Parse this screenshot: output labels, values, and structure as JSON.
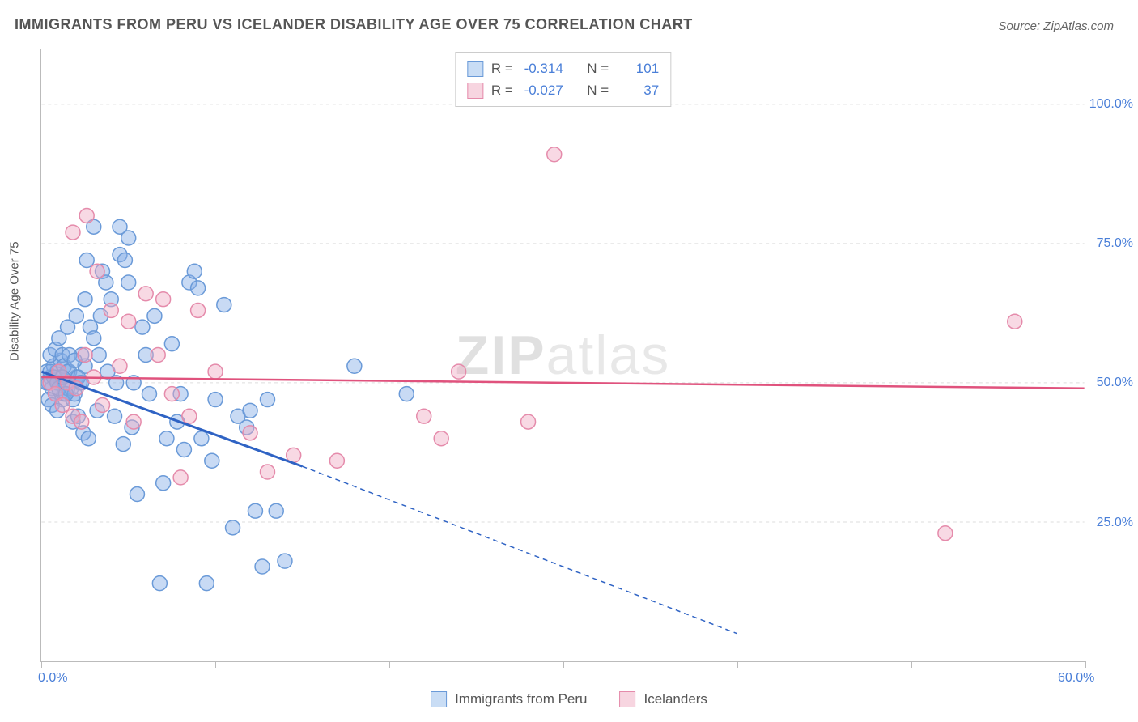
{
  "title": "IMMIGRANTS FROM PERU VS ICELANDER DISABILITY AGE OVER 75 CORRELATION CHART",
  "source": "Source: ZipAtlas.com",
  "watermark_bold": "ZIP",
  "watermark_thin": "atlas",
  "chart": {
    "type": "scatter",
    "ylabel": "Disability Age Over 75",
    "xlim": [
      0,
      60
    ],
    "ylim": [
      0,
      110
    ],
    "y_ticks": [
      25,
      50,
      75,
      100
    ],
    "y_tick_labels": [
      "25.0%",
      "50.0%",
      "75.0%",
      "100.0%"
    ],
    "x_ticks": [
      0,
      10,
      20,
      30,
      40,
      50,
      60
    ],
    "x_tick_labels_shown": {
      "0": "0.0%",
      "60": "60.0%"
    },
    "background_color": "#ffffff",
    "grid_color": "#dddddd",
    "axis_color": "#bbbbbb",
    "marker_radius": 9,
    "marker_stroke_width": 1.5,
    "series": [
      {
        "name": "Immigrants from Peru",
        "color_fill": "rgba(132,172,231,0.45)",
        "color_stroke": "#6a9ad8",
        "swatch_fill": "#c9ddf5",
        "swatch_stroke": "#6a9ad8",
        "R": "-0.314",
        "N": "101",
        "trend": {
          "x1": 0,
          "y1": 52,
          "x2_solid": 15,
          "y2_solid": 35,
          "x2_dash": 40,
          "y2_dash": 5,
          "stroke": "#2f63c4",
          "width": 3
        },
        "points": [
          [
            0.3,
            52
          ],
          [
            0.4,
            50
          ],
          [
            0.5,
            51
          ],
          [
            0.6,
            49
          ],
          [
            0.7,
            53
          ],
          [
            0.8,
            48
          ],
          [
            0.9,
            52
          ],
          [
            1.0,
            50
          ],
          [
            1.1,
            54
          ],
          [
            1.2,
            47
          ],
          [
            0.5,
            55
          ],
          [
            0.8,
            56
          ],
          [
            1.0,
            58
          ],
          [
            1.2,
            55
          ],
          [
            1.3,
            48
          ],
          [
            1.4,
            50
          ],
          [
            1.5,
            49
          ],
          [
            1.6,
            52
          ],
          [
            1.8,
            47
          ],
          [
            2.0,
            51
          ],
          [
            2.2,
            50
          ],
          [
            2.3,
            55
          ],
          [
            2.5,
            53
          ],
          [
            2.6,
            72
          ],
          [
            2.8,
            60
          ],
          [
            3.0,
            58
          ],
          [
            3.2,
            45
          ],
          [
            3.4,
            62
          ],
          [
            3.5,
            70
          ],
          [
            3.7,
            68
          ],
          [
            4.0,
            65
          ],
          [
            4.2,
            44
          ],
          [
            4.5,
            73
          ],
          [
            4.8,
            72
          ],
          [
            5.0,
            68
          ],
          [
            5.2,
            42
          ],
          [
            5.5,
            30
          ],
          [
            5.8,
            60
          ],
          [
            6.0,
            55
          ],
          [
            6.2,
            48
          ],
          [
            6.5,
            62
          ],
          [
            6.8,
            14
          ],
          [
            7.0,
            32
          ],
          [
            7.2,
            40
          ],
          [
            7.5,
            57
          ],
          [
            7.8,
            43
          ],
          [
            8.0,
            48
          ],
          [
            8.2,
            38
          ],
          [
            8.5,
            68
          ],
          [
            8.8,
            70
          ],
          [
            9.0,
            67
          ],
          [
            9.2,
            40
          ],
          [
            9.5,
            14
          ],
          [
            9.8,
            36
          ],
          [
            10.0,
            47
          ],
          [
            10.5,
            64
          ],
          [
            11.0,
            24
          ],
          [
            11.3,
            44
          ],
          [
            11.8,
            42
          ],
          [
            12.0,
            45
          ],
          [
            12.3,
            27
          ],
          [
            12.7,
            17
          ],
          [
            13.0,
            47
          ],
          [
            13.5,
            27
          ],
          [
            14.0,
            18
          ],
          [
            3.0,
            78
          ],
          [
            4.5,
            78
          ],
          [
            5.0,
            76
          ],
          [
            1.5,
            60
          ],
          [
            2.0,
            62
          ],
          [
            2.5,
            65
          ],
          [
            3.3,
            55
          ],
          [
            3.8,
            52
          ],
          [
            4.3,
            50
          ],
          [
            4.7,
            39
          ],
          [
            5.3,
            50
          ],
          [
            1.8,
            43
          ],
          [
            2.1,
            44
          ],
          [
            2.4,
            41
          ],
          [
            2.7,
            40
          ],
          [
            0.4,
            47
          ],
          [
            0.6,
            46
          ],
          [
            0.9,
            45
          ],
          [
            1.1,
            51
          ],
          [
            1.3,
            53
          ],
          [
            1.5,
            52
          ],
          [
            1.7,
            49
          ],
          [
            1.9,
            48
          ],
          [
            2.1,
            51
          ],
          [
            2.3,
            50
          ],
          [
            0.3,
            50
          ],
          [
            0.5,
            52
          ],
          [
            0.7,
            51
          ],
          [
            0.9,
            50
          ],
          [
            1.0,
            49
          ],
          [
            1.2,
            51
          ],
          [
            1.4,
            48
          ],
          [
            18.0,
            53
          ],
          [
            21.0,
            48
          ],
          [
            1.6,
            55
          ],
          [
            1.9,
            54
          ]
        ]
      },
      {
        "name": "Icelanders",
        "color_fill": "rgba(240,170,195,0.45)",
        "color_stroke": "#e58bab",
        "swatch_fill": "#f7d5e0",
        "swatch_stroke": "#e58bab",
        "R": "-0.027",
        "N": "37",
        "trend": {
          "x1": 0,
          "y1": 51,
          "x2_solid": 60,
          "y2_solid": 49,
          "stroke": "#e0527d",
          "width": 2.5
        },
        "points": [
          [
            0.5,
            50
          ],
          [
            0.8,
            48
          ],
          [
            1.0,
            52
          ],
          [
            1.2,
            46
          ],
          [
            1.5,
            50
          ],
          [
            1.8,
            44
          ],
          [
            2.0,
            49
          ],
          [
            2.3,
            43
          ],
          [
            2.5,
            55
          ],
          [
            2.6,
            80
          ],
          [
            1.8,
            77
          ],
          [
            3.0,
            51
          ],
          [
            3.5,
            46
          ],
          [
            4.0,
            63
          ],
          [
            4.5,
            53
          ],
          [
            5.0,
            61
          ],
          [
            5.3,
            43
          ],
          [
            6.0,
            66
          ],
          [
            6.7,
            55
          ],
          [
            7.0,
            65
          ],
          [
            7.5,
            48
          ],
          [
            8.0,
            33
          ],
          [
            8.5,
            44
          ],
          [
            9.0,
            63
          ],
          [
            10.0,
            52
          ],
          [
            12.0,
            41
          ],
          [
            13.0,
            34
          ],
          [
            14.5,
            37
          ],
          [
            17.0,
            36
          ],
          [
            22.0,
            44
          ],
          [
            23.0,
            40
          ],
          [
            24.0,
            52
          ],
          [
            28.0,
            43
          ],
          [
            29.5,
            91
          ],
          [
            52.0,
            23
          ],
          [
            56.0,
            61
          ],
          [
            3.2,
            70
          ]
        ]
      }
    ]
  },
  "legend_labels": {
    "R_label": "R =",
    "N_label": "N ="
  }
}
